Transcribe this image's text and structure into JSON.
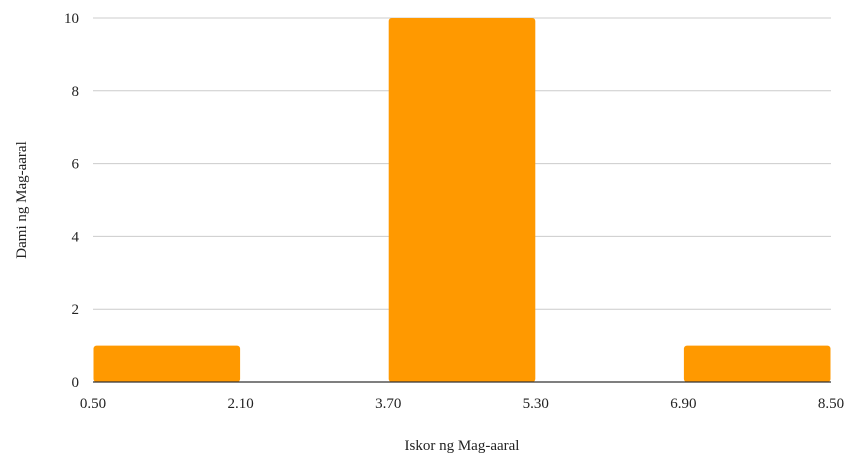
{
  "chart_data": {
    "type": "bar",
    "title": "",
    "xlabel": "Iskor ng Mag-aaral",
    "ylabel": "Dami ng Mag-aaral",
    "x_ticks": [
      "0.50",
      "2.10",
      "3.70",
      "5.30",
      "6.90",
      "8.50"
    ],
    "y_ticks": [
      "0",
      "2",
      "4",
      "6",
      "8",
      "10"
    ],
    "xlim": [
      0.5,
      8.5
    ],
    "ylim": [
      0,
      10
    ],
    "bins": [
      {
        "start": 0.5,
        "end": 2.1,
        "value": 1
      },
      {
        "start": 2.1,
        "end": 3.7,
        "value": 0
      },
      {
        "start": 3.7,
        "end": 5.3,
        "value": 10
      },
      {
        "start": 5.3,
        "end": 6.9,
        "value": 0
      },
      {
        "start": 6.9,
        "end": 8.5,
        "value": 1
      }
    ],
    "grid": true,
    "legend": "none",
    "bar_color": "#FF9900",
    "grid_color": "#CCCCCC",
    "axis_color": "#333333"
  }
}
